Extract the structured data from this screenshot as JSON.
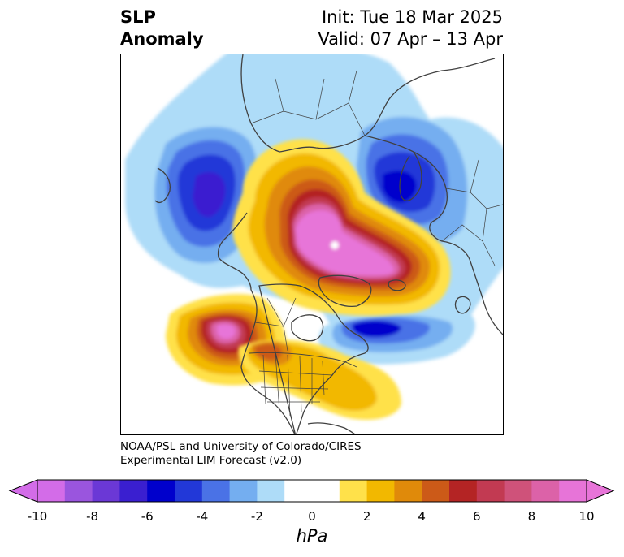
{
  "title": {
    "left_line1": "SLP",
    "left_line2": "Anomaly",
    "right_line1": "Init: Tue 18 Mar 2025",
    "right_line2": "Valid: 07 Apr – 13 Apr"
  },
  "credit": {
    "line1": "NOAA/PSL and University of Colorado/CIRES",
    "line2": "Experimental LIM Forecast (v2.0)"
  },
  "colorbar": {
    "unit": "hPa",
    "ticks": [
      "-10",
      "-8",
      "-6",
      "-4",
      "-2",
      "0",
      "2",
      "4",
      "6",
      "8",
      "10"
    ],
    "tick_values": [
      -10,
      -8,
      -6,
      -4,
      -2,
      0,
      2,
      4,
      6,
      8,
      10
    ],
    "boundaries": [
      -10,
      -9,
      -8,
      -7,
      -6,
      -5,
      -4,
      -3,
      -2,
      -1,
      1,
      2,
      3,
      4,
      5,
      6,
      7,
      8,
      9,
      10
    ],
    "colors": [
      "#d36ce8",
      "#9a55de",
      "#6b38d6",
      "#3a1fd0",
      "#0000cc",
      "#2238d8",
      "#4a72e6",
      "#74aef0",
      "#aedcf8",
      "#ffffff",
      "#ffe14a",
      "#f2b800",
      "#e08a0a",
      "#cc5a18",
      "#b42424",
      "#c23a52",
      "#cf527a",
      "#dc62a8",
      "#e774d8"
    ],
    "extend_min_color": "#d36ce8",
    "extend_max_color": "#e774d8"
  },
  "map": {
    "projection": "north-polar-stereographic",
    "variable": "sea-level-pressure-anomaly",
    "features": [
      {
        "name": "arctic-high",
        "sign": "positive",
        "peak_hPa": 10
      },
      {
        "name": "northeast-pacific-high",
        "sign": "positive",
        "peak_hPa": 10
      },
      {
        "name": "north-atlantic-low",
        "sign": "negative",
        "peak_hPa": -7
      },
      {
        "name": "northwest-pacific-low",
        "sign": "negative",
        "peak_hPa": -7
      },
      {
        "name": "eurasia-low",
        "sign": "negative",
        "peak_hPa": -7
      }
    ]
  }
}
